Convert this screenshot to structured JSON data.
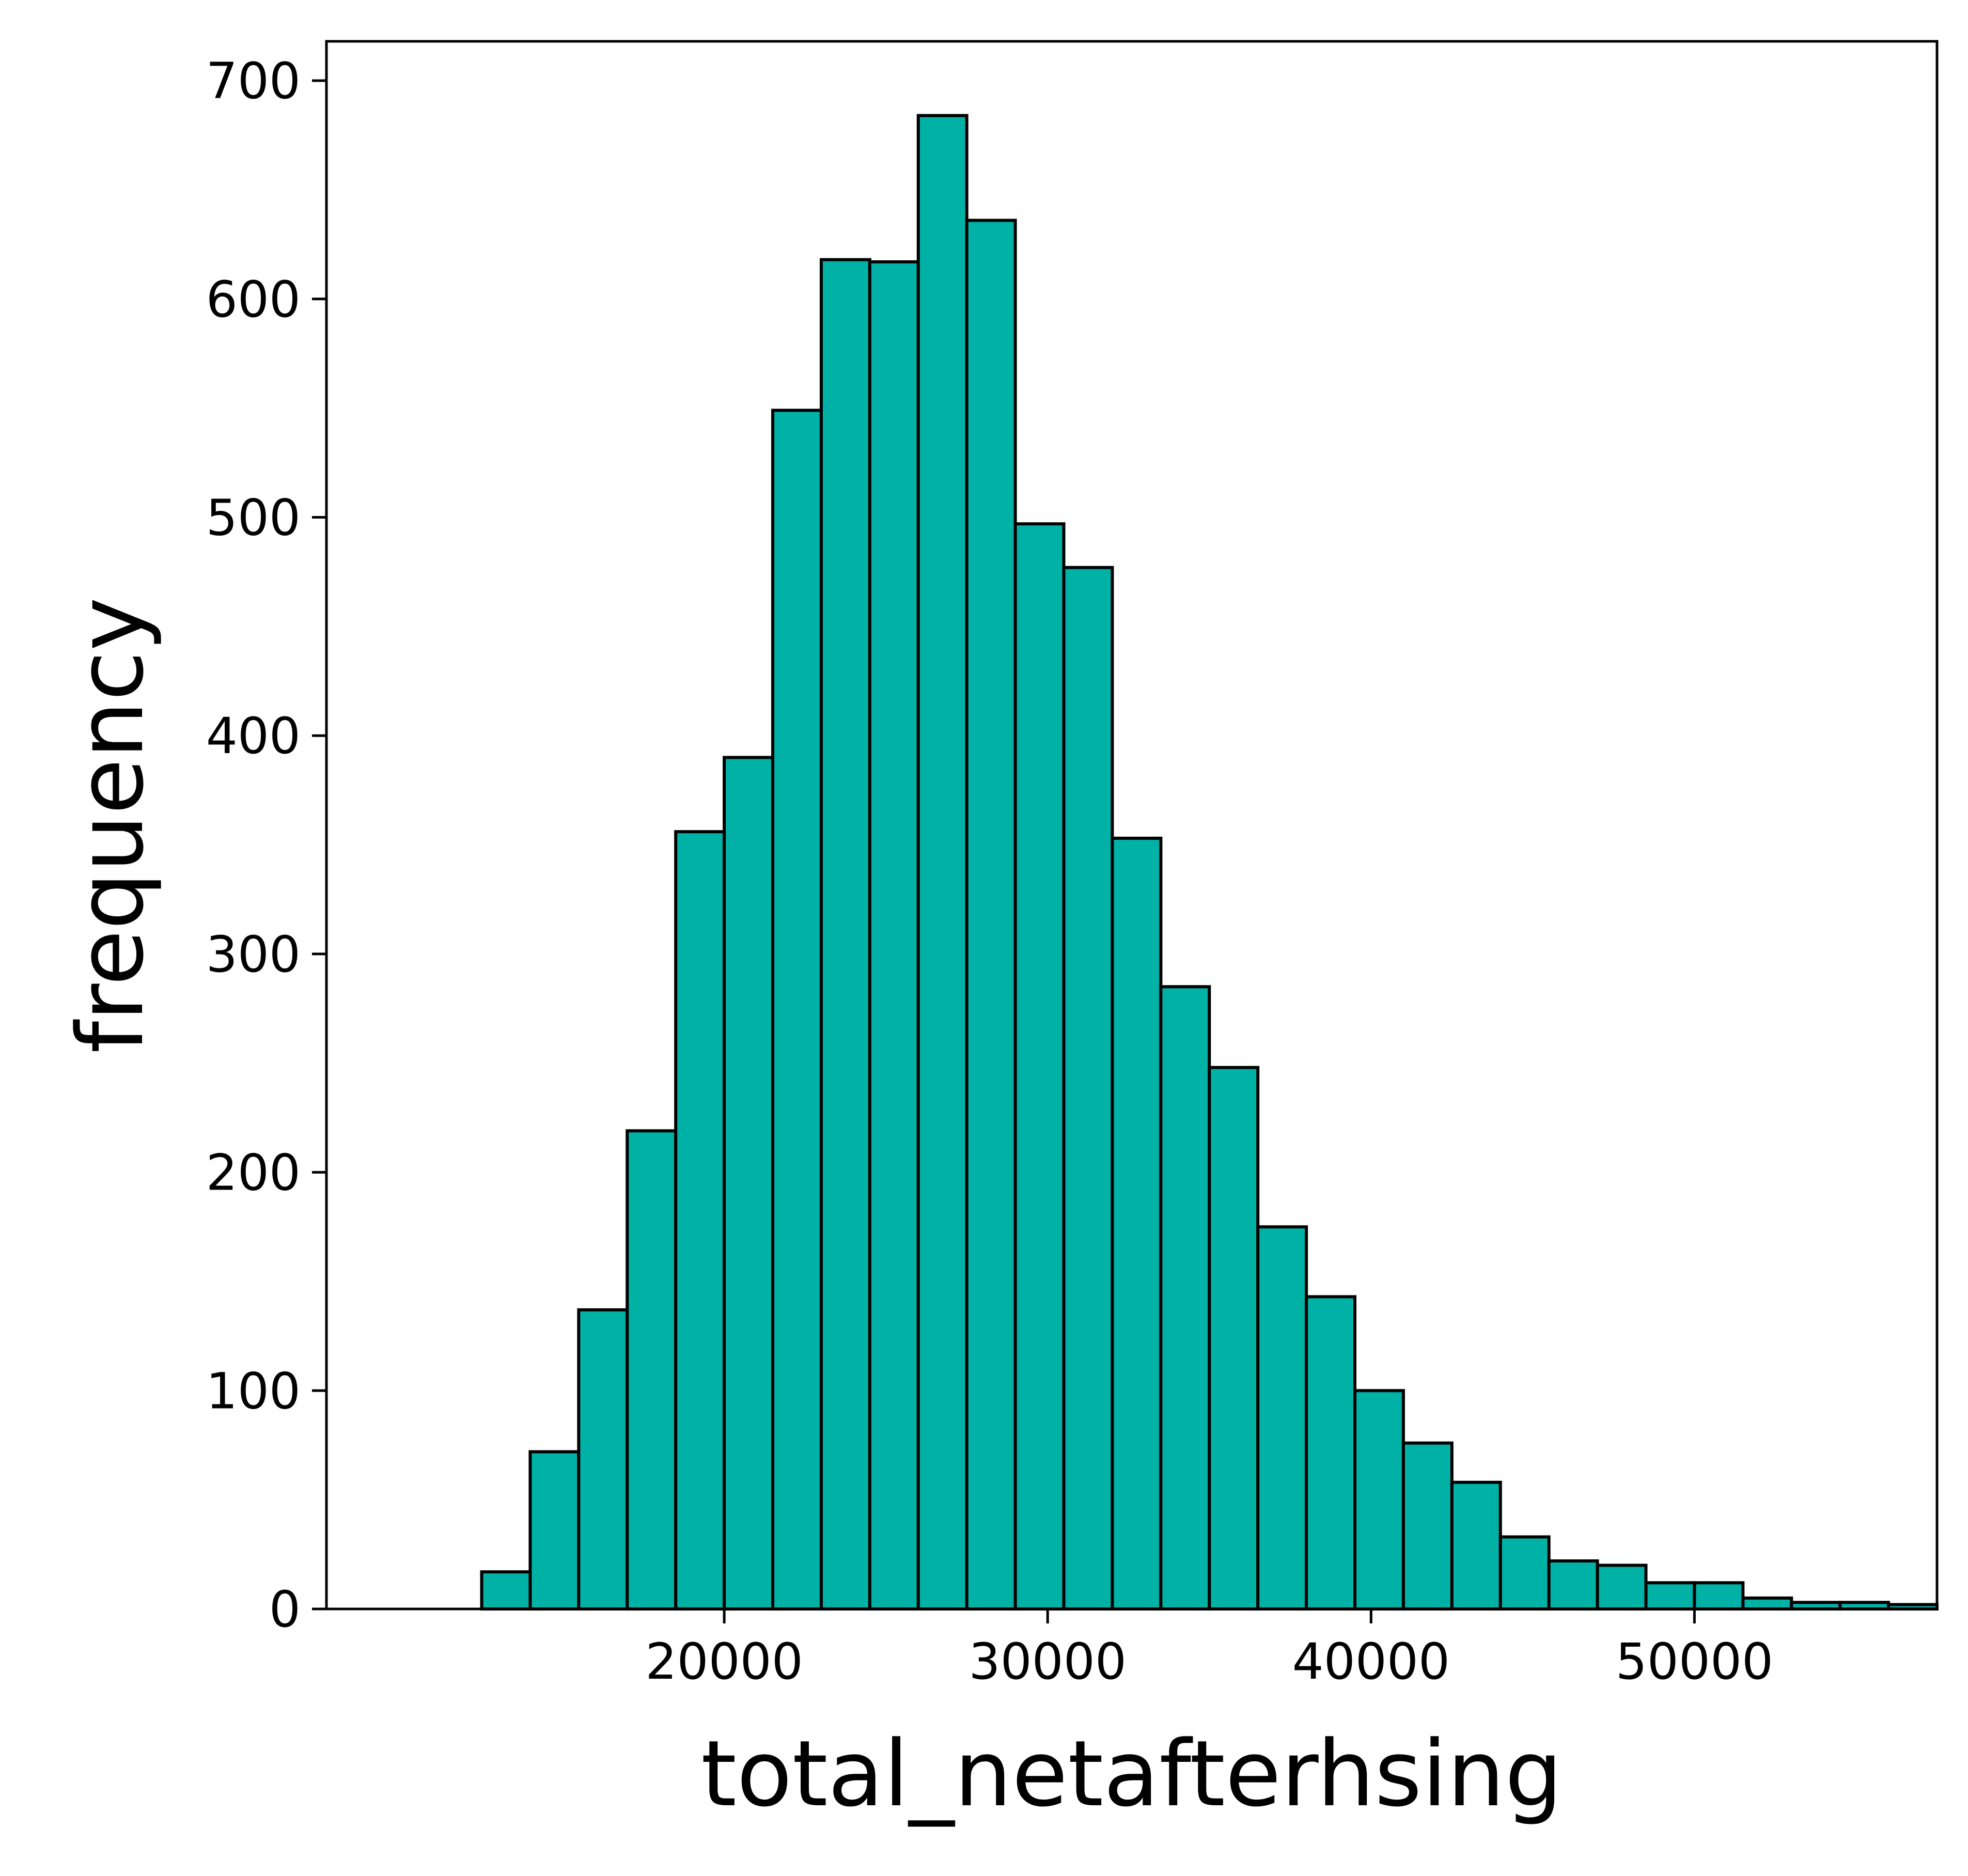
{
  "chart_data": {
    "type": "bar",
    "title": "",
    "xlabel": "total_netafterhsing",
    "ylabel": "frequency",
    "bin_edges": [
      12500,
      14000,
      15500,
      17000,
      18500,
      20000,
      21500,
      23000,
      24500,
      26000,
      27500,
      29000,
      30500,
      32000,
      33500,
      35000,
      36500,
      38000,
      39500,
      41000,
      42500,
      44000,
      45500,
      47000,
      48500,
      50000,
      51500,
      53000,
      54500,
      56000,
      57500
    ],
    "values": [
      17,
      72,
      137,
      219,
      356,
      390,
      549,
      618,
      617,
      684,
      636,
      497,
      477,
      353,
      285,
      248,
      175,
      143,
      100,
      76,
      58,
      33,
      22,
      20,
      12,
      12,
      5,
      3,
      3,
      2
    ],
    "xlim": [
      7700,
      57500
    ],
    "ylim": [
      0,
      718
    ],
    "xticks": [
      20000,
      30000,
      40000,
      50000
    ],
    "yticks": [
      0,
      100,
      200,
      300,
      400,
      500,
      600,
      700
    ],
    "grid": false,
    "bar_color": "#00b2a6",
    "edge_color": "#000000"
  }
}
